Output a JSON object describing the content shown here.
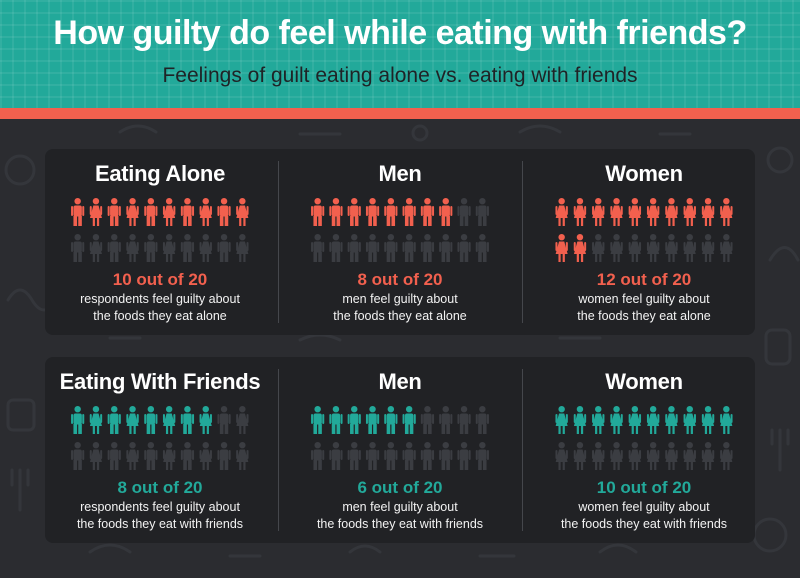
{
  "header": {
    "title": "How guilty do feel while eating with friends?",
    "subtitle": "Feelings of guilt eating alone vs. eating with friends"
  },
  "colors": {
    "header_bg": "#22a99a",
    "accent": "#f2604e",
    "panel_bg": "#212225",
    "teal": "#22a99a",
    "coral": "#f2604e",
    "inactive_figure": "#3b3d42"
  },
  "icons": {
    "figure_male": "person-icon",
    "figure_female": "female-person-icon"
  },
  "panels": [
    {
      "accent_color": "#f2604e",
      "columns": [
        {
          "title": "Eating Alone",
          "stat": "10 out of 20",
          "desc_line1": "respondents feel guilty about",
          "desc_line2": "the foods they eat alone",
          "value": 10,
          "total": 20,
          "figure": "mixed"
        },
        {
          "title": "Men",
          "stat": "8 out of 20",
          "desc_line1": "men feel guilty about",
          "desc_line2": "the foods they eat alone",
          "value": 8,
          "total": 20,
          "figure": "male"
        },
        {
          "title": "Women",
          "stat": "12 out of 20",
          "desc_line1": "women feel guilty about",
          "desc_line2": "the foods they eat alone",
          "value": 12,
          "total": 20,
          "figure": "female"
        }
      ]
    },
    {
      "accent_color": "#22a99a",
      "columns": [
        {
          "title": "Eating With Friends",
          "stat": "8 out of 20",
          "desc_line1": "respondents feel guilty about",
          "desc_line2": "the foods they eat with friends",
          "value": 8,
          "total": 20,
          "figure": "mixed"
        },
        {
          "title": "Men",
          "stat": "6 out of 20",
          "desc_line1": "men feel guilty about",
          "desc_line2": "the foods they eat with friends",
          "value": 6,
          "total": 20,
          "figure": "male"
        },
        {
          "title": "Women",
          "stat": "10 out of 20",
          "desc_line1": "women feel guilty about",
          "desc_line2": "the foods they eat with friends",
          "value": 10,
          "total": 20,
          "figure": "female"
        }
      ]
    }
  ],
  "chart_data": {
    "type": "pictograph",
    "title": "How guilty do feel while eating with friends?",
    "subtitle": "Feelings of guilt eating alone vs. eating with friends",
    "unit_total": 20,
    "groups": [
      "Eating Alone",
      "Eating With Friends"
    ],
    "categories": [
      "All respondents",
      "Men",
      "Women"
    ],
    "series": [
      {
        "name": "Eating Alone",
        "values": [
          10,
          8,
          12
        ]
      },
      {
        "name": "Eating With Friends",
        "values": [
          8,
          6,
          10
        ]
      }
    ]
  }
}
